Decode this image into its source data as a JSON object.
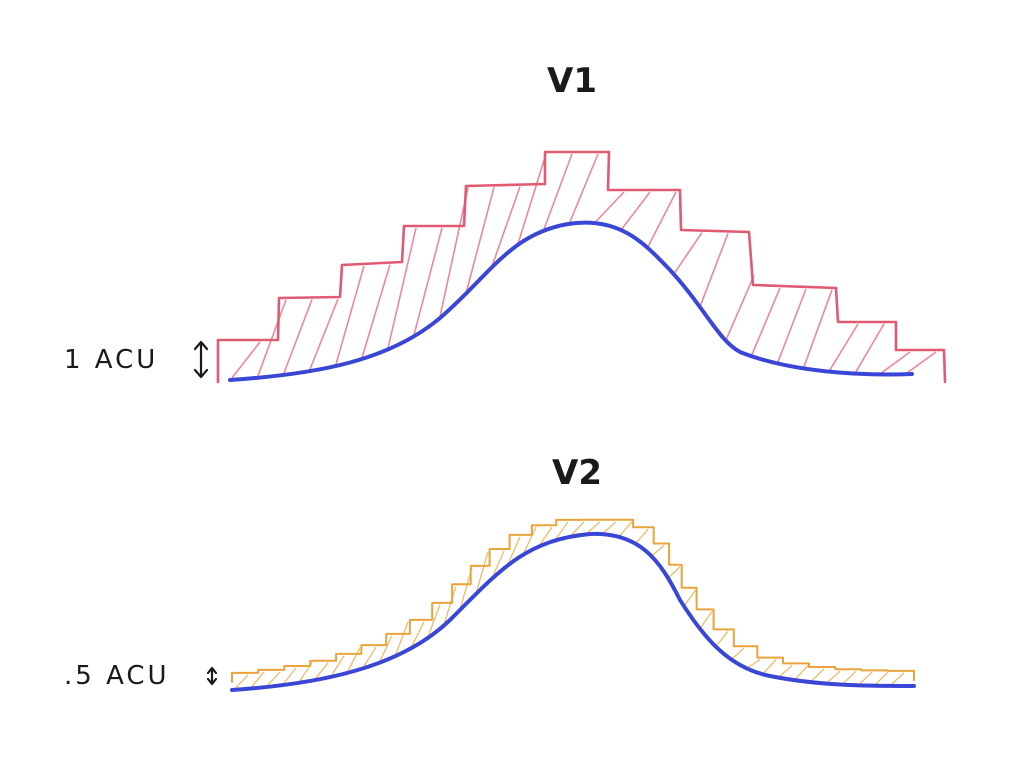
{
  "panels": [
    {
      "title": "V1",
      "label": "1 ACU",
      "step_color": "#e05a72"
    },
    {
      "title": "V2",
      "label": ".5 ACU",
      "step_color": "#e9a43c"
    }
  ],
  "curve_color": "#3a46d6"
}
